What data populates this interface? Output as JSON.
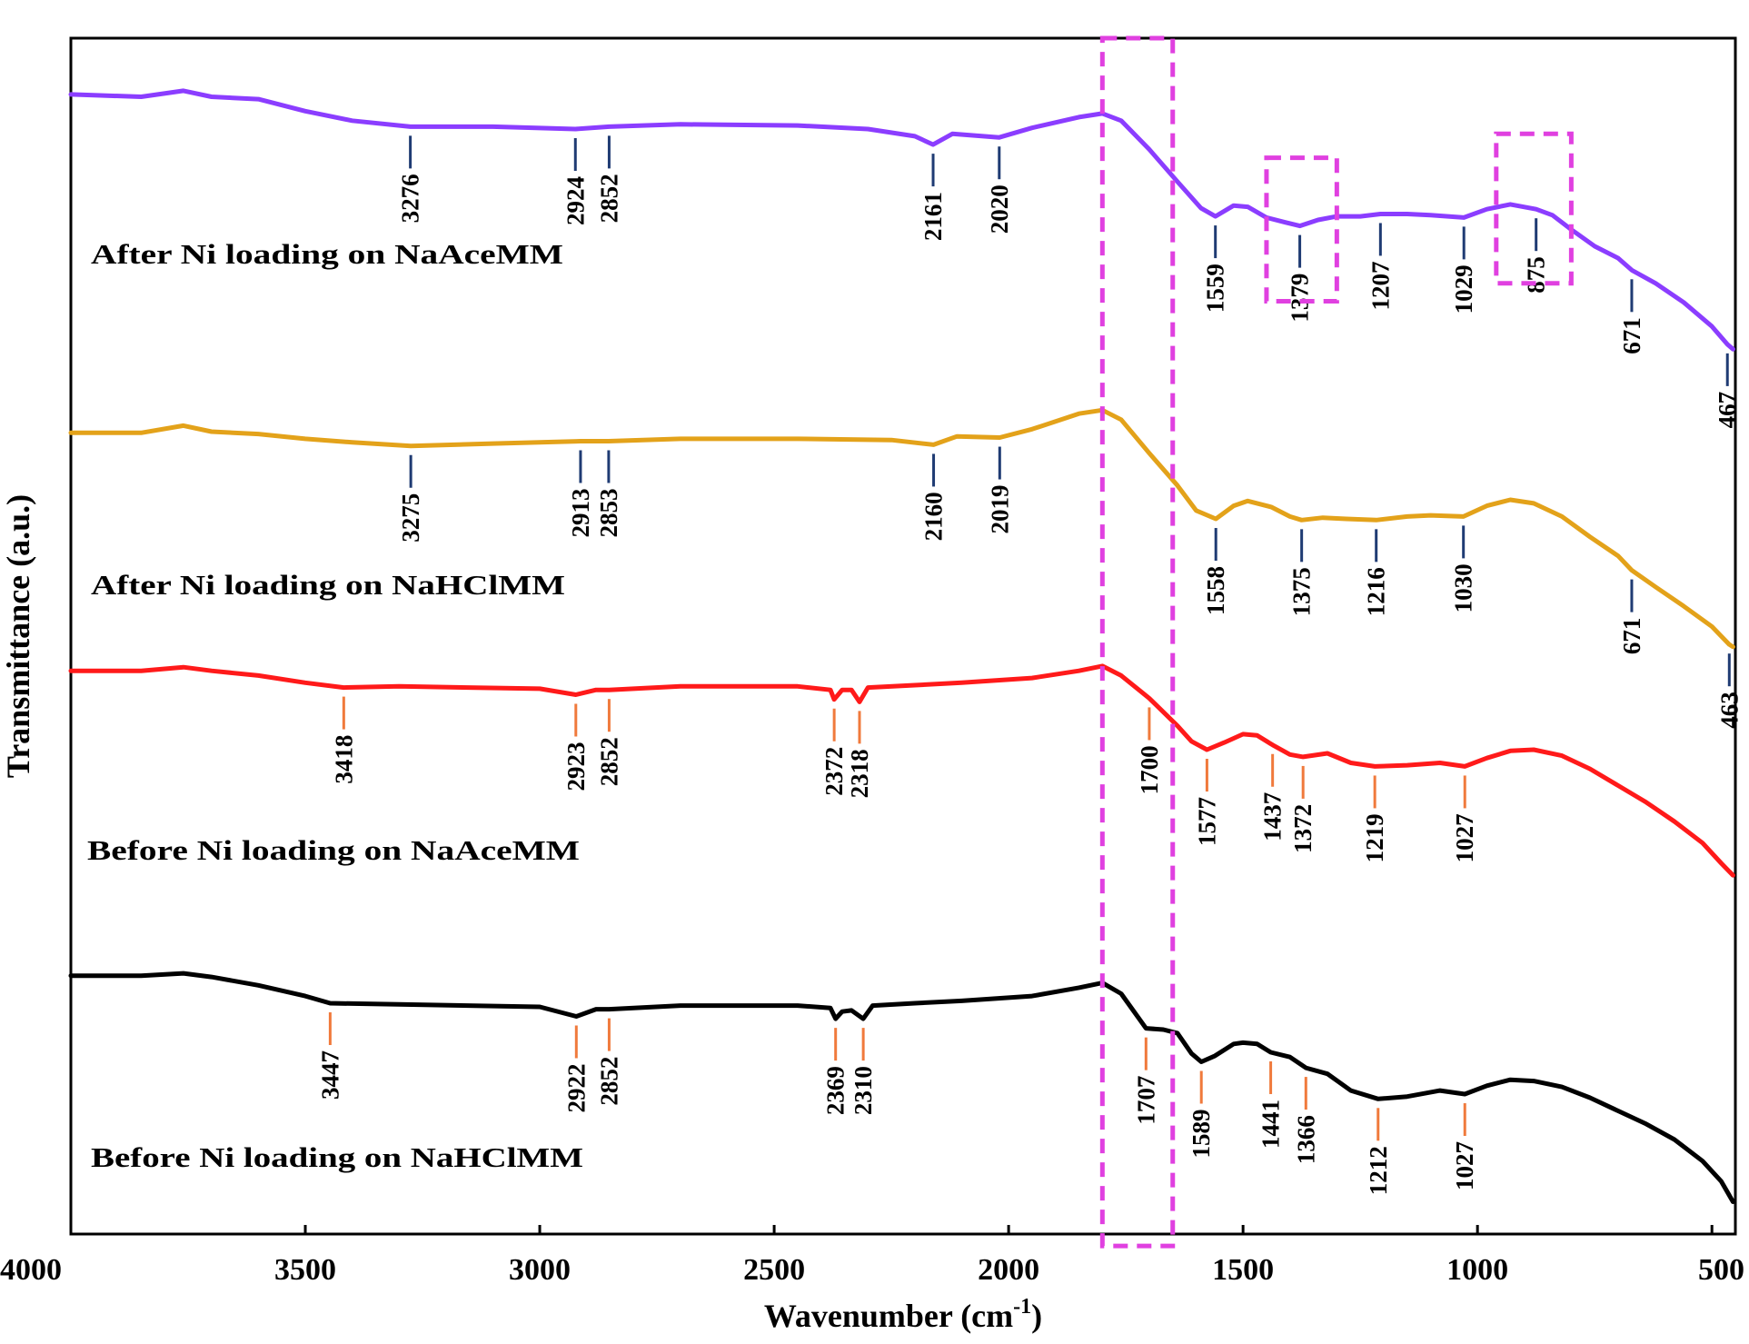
{
  "chart_data": {
    "type": "line",
    "xlabel": "Wavenumber (cm-1)",
    "xlabel_main": "Wavenumber  (cm",
    "xlabel_sup": "-1",
    "xlabel_close": ")",
    "ylabel": "Transmittance  (a.u.)",
    "x_reversed": true,
    "xlim": [
      4000,
      450
    ],
    "ylim": [
      0,
      1
    ],
    "xticks": [
      4000,
      3500,
      3000,
      2500,
      2000,
      1500,
      1000,
      500
    ],
    "xtick_labels": [
      "4000",
      "3500",
      "3000",
      "2500",
      "2000",
      "1500",
      "1000",
      "500"
    ],
    "grid": false,
    "series": [
      {
        "name": "After Ni loading on NaAceMM",
        "color": "#8b3dff",
        "marker_color": "#1f3b73",
        "points": [
          [
            4000,
            0.953
          ],
          [
            3850,
            0.951
          ],
          [
            3760,
            0.956
          ],
          [
            3700,
            0.951
          ],
          [
            3600,
            0.949
          ],
          [
            3500,
            0.939
          ],
          [
            3400,
            0.931
          ],
          [
            3276,
            0.926
          ],
          [
            3100,
            0.926
          ],
          [
            2924,
            0.924
          ],
          [
            2852,
            0.926
          ],
          [
            2700,
            0.928
          ],
          [
            2450,
            0.927
          ],
          [
            2300,
            0.924
          ],
          [
            2200,
            0.918
          ],
          [
            2161,
            0.911
          ],
          [
            2120,
            0.92
          ],
          [
            2020,
            0.917
          ],
          [
            1950,
            0.925
          ],
          [
            1850,
            0.934
          ],
          [
            1800,
            0.937
          ],
          [
            1760,
            0.931
          ],
          [
            1700,
            0.907
          ],
          [
            1640,
            0.88
          ],
          [
            1590,
            0.858
          ],
          [
            1559,
            0.851
          ],
          [
            1520,
            0.86
          ],
          [
            1490,
            0.859
          ],
          [
            1450,
            0.85
          ],
          [
            1410,
            0.846
          ],
          [
            1379,
            0.843
          ],
          [
            1340,
            0.848
          ],
          [
            1300,
            0.851
          ],
          [
            1250,
            0.851
          ],
          [
            1207,
            0.853
          ],
          [
            1150,
            0.853
          ],
          [
            1100,
            0.852
          ],
          [
            1029,
            0.85
          ],
          [
            980,
            0.857
          ],
          [
            930,
            0.861
          ],
          [
            875,
            0.857
          ],
          [
            840,
            0.852
          ],
          [
            800,
            0.84
          ],
          [
            750,
            0.826
          ],
          [
            700,
            0.816
          ],
          [
            671,
            0.806
          ],
          [
            620,
            0.795
          ],
          [
            560,
            0.779
          ],
          [
            500,
            0.759
          ],
          [
            467,
            0.744
          ],
          [
            455,
            0.74
          ]
        ],
        "peaks": [
          {
            "x": 3276,
            "label": "3276"
          },
          {
            "x": 2924,
            "label": "2924"
          },
          {
            "x": 2852,
            "label": "2852"
          },
          {
            "x": 2161,
            "label": "2161"
          },
          {
            "x": 2020,
            "label": "2020"
          },
          {
            "x": 1559,
            "label": "1559"
          },
          {
            "x": 1379,
            "label": "1379"
          },
          {
            "x": 1207,
            "label": "1207"
          },
          {
            "x": 1029,
            "label": "1029"
          },
          {
            "x": 875,
            "label": "875"
          },
          {
            "x": 671,
            "label": "671"
          },
          {
            "x": 467,
            "label": "467"
          }
        ]
      },
      {
        "name": "After Ni loading on NaHClMM",
        "color": "#e3a21a",
        "marker_color": "#1f3b73",
        "points": [
          [
            4000,
            0.67
          ],
          [
            3850,
            0.67
          ],
          [
            3760,
            0.676
          ],
          [
            3700,
            0.671
          ],
          [
            3600,
            0.669
          ],
          [
            3500,
            0.665
          ],
          [
            3400,
            0.662
          ],
          [
            3275,
            0.659
          ],
          [
            3100,
            0.661
          ],
          [
            2913,
            0.663
          ],
          [
            2853,
            0.663
          ],
          [
            2700,
            0.665
          ],
          [
            2450,
            0.665
          ],
          [
            2250,
            0.664
          ],
          [
            2160,
            0.66
          ],
          [
            2110,
            0.667
          ],
          [
            2019,
            0.666
          ],
          [
            1950,
            0.673
          ],
          [
            1850,
            0.686
          ],
          [
            1800,
            0.689
          ],
          [
            1760,
            0.681
          ],
          [
            1700,
            0.653
          ],
          [
            1640,
            0.626
          ],
          [
            1600,
            0.605
          ],
          [
            1558,
            0.598
          ],
          [
            1520,
            0.609
          ],
          [
            1490,
            0.613
          ],
          [
            1440,
            0.608
          ],
          [
            1400,
            0.6
          ],
          [
            1375,
            0.597
          ],
          [
            1330,
            0.599
          ],
          [
            1280,
            0.598
          ],
          [
            1216,
            0.597
          ],
          [
            1150,
            0.6
          ],
          [
            1100,
            0.601
          ],
          [
            1030,
            0.6
          ],
          [
            980,
            0.609
          ],
          [
            930,
            0.614
          ],
          [
            880,
            0.611
          ],
          [
            820,
            0.6
          ],
          [
            760,
            0.583
          ],
          [
            700,
            0.567
          ],
          [
            671,
            0.555
          ],
          [
            620,
            0.541
          ],
          [
            560,
            0.525
          ],
          [
            500,
            0.508
          ],
          [
            463,
            0.493
          ],
          [
            455,
            0.491
          ]
        ],
        "peaks": [
          {
            "x": 3275,
            "label": "3275"
          },
          {
            "x": 2913,
            "label": "2913"
          },
          {
            "x": 2853,
            "label": "2853"
          },
          {
            "x": 2160,
            "label": "2160"
          },
          {
            "x": 2019,
            "label": "2019"
          },
          {
            "x": 1558,
            "label": "1558"
          },
          {
            "x": 1375,
            "label": "1375"
          },
          {
            "x": 1216,
            "label": "1216"
          },
          {
            "x": 1030,
            "label": "1030"
          },
          {
            "x": 671,
            "label": "671"
          },
          {
            "x": 463,
            "label": "463"
          }
        ]
      },
      {
        "name": "Before Ni loading on NaAceMM",
        "color": "#ff1a1a",
        "marker_color": "#f07a3c",
        "points": [
          [
            4000,
            0.471
          ],
          [
            3850,
            0.471
          ],
          [
            3760,
            0.474
          ],
          [
            3700,
            0.471
          ],
          [
            3600,
            0.467
          ],
          [
            3500,
            0.461
          ],
          [
            3418,
            0.457
          ],
          [
            3300,
            0.458
          ],
          [
            3000,
            0.456
          ],
          [
            2923,
            0.451
          ],
          [
            2880,
            0.455
          ],
          [
            2852,
            0.455
          ],
          [
            2700,
            0.458
          ],
          [
            2450,
            0.458
          ],
          [
            2380,
            0.455
          ],
          [
            2372,
            0.447
          ],
          [
            2355,
            0.455
          ],
          [
            2335,
            0.455
          ],
          [
            2318,
            0.445
          ],
          [
            2300,
            0.457
          ],
          [
            2200,
            0.459
          ],
          [
            2100,
            0.461
          ],
          [
            1950,
            0.465
          ],
          [
            1850,
            0.471
          ],
          [
            1800,
            0.475
          ],
          [
            1760,
            0.467
          ],
          [
            1700,
            0.448
          ],
          [
            1640,
            0.425
          ],
          [
            1610,
            0.412
          ],
          [
            1577,
            0.405
          ],
          [
            1540,
            0.411
          ],
          [
            1500,
            0.418
          ],
          [
            1470,
            0.417
          ],
          [
            1437,
            0.409
          ],
          [
            1400,
            0.401
          ],
          [
            1372,
            0.399
          ],
          [
            1320,
            0.402
          ],
          [
            1270,
            0.394
          ],
          [
            1219,
            0.391
          ],
          [
            1150,
            0.392
          ],
          [
            1080,
            0.394
          ],
          [
            1027,
            0.391
          ],
          [
            980,
            0.398
          ],
          [
            930,
            0.404
          ],
          [
            880,
            0.405
          ],
          [
            820,
            0.4
          ],
          [
            760,
            0.389
          ],
          [
            700,
            0.375
          ],
          [
            640,
            0.361
          ],
          [
            580,
            0.345
          ],
          [
            520,
            0.327
          ],
          [
            480,
            0.31
          ],
          [
            455,
            0.3
          ]
        ],
        "peaks": [
          {
            "x": 3418,
            "label": "3418"
          },
          {
            "x": 2923,
            "label": "2923"
          },
          {
            "x": 2852,
            "label": "2852"
          },
          {
            "x": 2372,
            "label": "2372"
          },
          {
            "x": 2318,
            "label": "2318"
          },
          {
            "x": 1700,
            "label": "1700"
          },
          {
            "x": 1577,
            "label": "1577"
          },
          {
            "x": 1437,
            "label": "1437"
          },
          {
            "x": 1372,
            "label": "1372"
          },
          {
            "x": 1219,
            "label": "1219"
          },
          {
            "x": 1027,
            "label": "1027"
          }
        ]
      },
      {
        "name": "Before Ni loading on NaHClMM",
        "color": "#000000",
        "marker_color": "#f07a3c",
        "points": [
          [
            4000,
            0.216
          ],
          [
            3850,
            0.216
          ],
          [
            3760,
            0.218
          ],
          [
            3700,
            0.215
          ],
          [
            3600,
            0.208
          ],
          [
            3500,
            0.199
          ],
          [
            3447,
            0.193
          ],
          [
            3300,
            0.192
          ],
          [
            3000,
            0.19
          ],
          [
            2922,
            0.182
          ],
          [
            2880,
            0.188
          ],
          [
            2852,
            0.188
          ],
          [
            2700,
            0.191
          ],
          [
            2450,
            0.191
          ],
          [
            2380,
            0.189
          ],
          [
            2369,
            0.18
          ],
          [
            2355,
            0.186
          ],
          [
            2335,
            0.187
          ],
          [
            2310,
            0.18
          ],
          [
            2290,
            0.191
          ],
          [
            2200,
            0.193
          ],
          [
            2100,
            0.195
          ],
          [
            1950,
            0.199
          ],
          [
            1850,
            0.206
          ],
          [
            1800,
            0.21
          ],
          [
            1760,
            0.201
          ],
          [
            1707,
            0.172
          ],
          [
            1670,
            0.171
          ],
          [
            1640,
            0.168
          ],
          [
            1610,
            0.151
          ],
          [
            1589,
            0.144
          ],
          [
            1560,
            0.149
          ],
          [
            1520,
            0.159
          ],
          [
            1500,
            0.16
          ],
          [
            1470,
            0.159
          ],
          [
            1441,
            0.152
          ],
          [
            1400,
            0.148
          ],
          [
            1366,
            0.139
          ],
          [
            1320,
            0.134
          ],
          [
            1270,
            0.12
          ],
          [
            1212,
            0.113
          ],
          [
            1150,
            0.115
          ],
          [
            1080,
            0.12
          ],
          [
            1027,
            0.117
          ],
          [
            980,
            0.124
          ],
          [
            930,
            0.129
          ],
          [
            880,
            0.128
          ],
          [
            820,
            0.123
          ],
          [
            760,
            0.114
          ],
          [
            700,
            0.103
          ],
          [
            640,
            0.092
          ],
          [
            580,
            0.079
          ],
          [
            520,
            0.061
          ],
          [
            480,
            0.044
          ],
          [
            455,
            0.027
          ]
        ],
        "peaks": [
          {
            "x": 3447,
            "label": "3447"
          },
          {
            "x": 2922,
            "label": "2922"
          },
          {
            "x": 2852,
            "label": "2852"
          },
          {
            "x": 2369,
            "label": "2369"
          },
          {
            "x": 2310,
            "label": "2310"
          },
          {
            "x": 1707,
            "label": "1707"
          },
          {
            "x": 1589,
            "label": "1589"
          },
          {
            "x": 1441,
            "label": "1441"
          },
          {
            "x": 1366,
            "label": "1366"
          },
          {
            "x": 1212,
            "label": "1212"
          },
          {
            "x": 1027,
            "label": "1027"
          }
        ]
      }
    ],
    "highlight_boxes": [
      {
        "x_range": [
          1800,
          1650
        ],
        "y_range": [
          -0.01,
          1.0
        ],
        "color": "#e040e0"
      },
      {
        "x_range": [
          1450,
          1300
        ],
        "y_range": [
          0.78,
          0.9
        ],
        "color": "#e040e0"
      },
      {
        "x_range": [
          960,
          800
        ],
        "y_range": [
          0.795,
          0.92
        ],
        "color": "#e040e0"
      }
    ]
  }
}
